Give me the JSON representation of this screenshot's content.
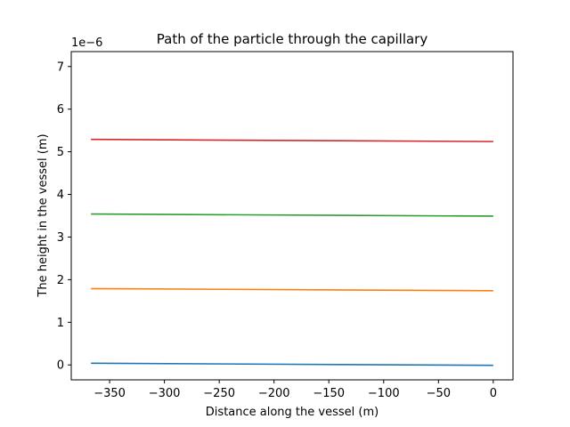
{
  "chart_data": {
    "type": "line",
    "title": "Path of the particle through the capillary",
    "xlabel": "Distance along the vessel (m)",
    "ylabel": "The height in the vessel (m)",
    "y_offset_label": "1e−6",
    "xlim": [
      -385,
      18
    ],
    "ylim": [
      -0.35,
      7.35
    ],
    "xticks": [
      -350,
      -300,
      -250,
      -200,
      -150,
      -100,
      -50,
      0
    ],
    "xtick_labels": [
      "−350",
      "−300",
      "−250",
      "−200",
      "−150",
      "−100",
      "−50",
      "0"
    ],
    "yticks": [
      0,
      1,
      2,
      3,
      4,
      5,
      6,
      7
    ],
    "ytick_labels": [
      "0",
      "1",
      "2",
      "3",
      "4",
      "5",
      "6",
      "7"
    ],
    "grid": false,
    "series": [
      {
        "color": "#1f77b4",
        "x": [
          -367,
          0
        ],
        "y": [
          0.04,
          -0.01
        ]
      },
      {
        "color": "#ff7f0e",
        "x": [
          -367,
          0
        ],
        "y": [
          1.79,
          1.74
        ]
      },
      {
        "color": "#2ca02c",
        "x": [
          -367,
          0
        ],
        "y": [
          3.54,
          3.49
        ]
      },
      {
        "color": "#d62728",
        "x": [
          -367,
          0
        ],
        "y": [
          5.29,
          5.24
        ]
      }
    ]
  }
}
